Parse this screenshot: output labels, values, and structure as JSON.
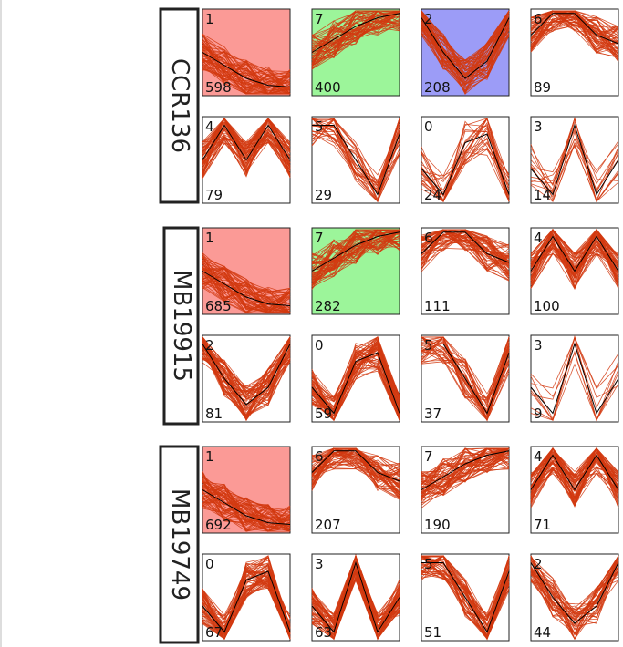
{
  "groups": [
    {
      "label": "CCR136",
      "panels": [
        {
          "id": "1",
          "count": "598",
          "background": "#fb9a96"
        },
        {
          "id": "7",
          "count": "400",
          "background": "#9cf59a"
        },
        {
          "id": "2",
          "count": "208",
          "background": "#9c9cf7"
        },
        {
          "id": "6",
          "count": "89",
          "background": "#ffffff"
        },
        {
          "id": "4",
          "count": "79",
          "background": "#ffffff"
        },
        {
          "id": "5",
          "count": "29",
          "background": "#ffffff"
        },
        {
          "id": "0",
          "count": "24",
          "background": "#ffffff"
        },
        {
          "id": "3",
          "count": "14",
          "background": "#ffffff"
        }
      ]
    },
    {
      "label": "MB19915",
      "panels": [
        {
          "id": "1",
          "count": "685",
          "background": "#fb9a96"
        },
        {
          "id": "7",
          "count": "282",
          "background": "#9cf59a"
        },
        {
          "id": "6",
          "count": "111",
          "background": "#ffffff"
        },
        {
          "id": "4",
          "count": "100",
          "background": "#ffffff"
        },
        {
          "id": "2",
          "count": "81",
          "background": "#ffffff"
        },
        {
          "id": "0",
          "count": "59",
          "background": "#ffffff"
        },
        {
          "id": "5",
          "count": "37",
          "background": "#ffffff"
        },
        {
          "id": "3",
          "count": "9",
          "background": "#ffffff"
        }
      ]
    },
    {
      "label": "MB19749",
      "panels": [
        {
          "id": "1",
          "count": "692",
          "background": "#fb9a96"
        },
        {
          "id": "6",
          "count": "207",
          "background": "#ffffff"
        },
        {
          "id": "7",
          "count": "190",
          "background": "#ffffff"
        },
        {
          "id": "4",
          "count": "71",
          "background": "#ffffff"
        },
        {
          "id": "0",
          "count": "67",
          "background": "#ffffff"
        },
        {
          "id": "3",
          "count": "63",
          "background": "#ffffff"
        },
        {
          "id": "5",
          "count": "51",
          "background": "#ffffff"
        },
        {
          "id": "2",
          "count": "44",
          "background": "#ffffff"
        }
      ]
    }
  ]
}
